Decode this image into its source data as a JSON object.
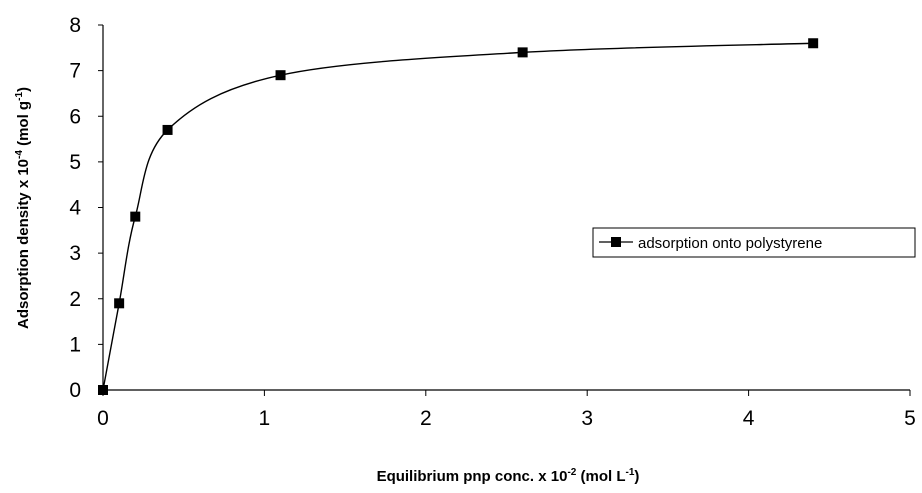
{
  "chart_data": {
    "type": "line",
    "xlabel": {
      "pre": "Equilibrium pnp conc. x 10",
      "sup1": "-2",
      "mid": " (mol L",
      "sup2": "-1",
      "post": ")"
    },
    "ylabel": {
      "pre": "Adsorption density x 10",
      "sup1": "-4",
      "mid": " (mol g",
      "sup2": "-1",
      "post": ")"
    },
    "xlim": [
      0,
      5
    ],
    "ylim": [
      0,
      8
    ],
    "x_ticks": [
      "0",
      "1",
      "2",
      "3",
      "4",
      "5"
    ],
    "y_ticks": [
      "0",
      "1",
      "2",
      "3",
      "4",
      "5",
      "6",
      "7",
      "8"
    ],
    "grid": false,
    "legend_position": "right",
    "series": [
      {
        "name": "adsorption onto polystyrene",
        "color": "#000000",
        "marker": "square",
        "smooth": true,
        "points": [
          {
            "x": 0,
            "y": 0
          },
          {
            "x": 0.1,
            "y": 1.9
          },
          {
            "x": 0.2,
            "y": 3.8
          },
          {
            "x": 0.4,
            "y": 5.7
          },
          {
            "x": 1.1,
            "y": 6.9
          },
          {
            "x": 2.6,
            "y": 7.4
          },
          {
            "x": 4.4,
            "y": 7.6
          }
        ]
      }
    ]
  }
}
